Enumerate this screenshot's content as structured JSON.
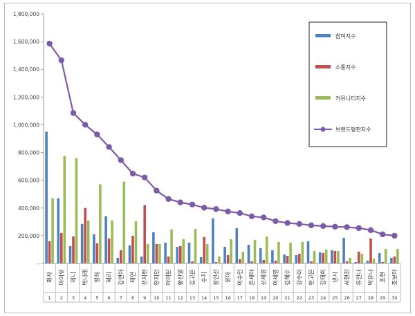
{
  "chart_data": {
    "type": "bar",
    "title": "",
    "xlabel": "",
    "ylabel": "",
    "ylim": [
      0,
      1800000
    ],
    "y_ticks": [
      "-",
      "200,000",
      "400,000",
      "600,000",
      "800,000",
      "1,000,000",
      "1,200,000",
      "1,400,000",
      "1,600,000",
      "1,800,000"
    ],
    "grid": false,
    "legend_position": "right",
    "categories": [
      "화사",
      "아이유",
      "제니",
      "박나래",
      "청하",
      "혜리",
      "김연아",
      "태연",
      "전지현",
      "한지민",
      "아이린",
      "황신영",
      "김고은",
      "수지",
      "정인선",
      "윤아",
      "이수민",
      "윤세아",
      "신세경",
      "이세영",
      "김혜수",
      "강수미",
      "한고은",
      "김태희",
      "낸시",
      "서현진",
      "유인나",
      "박유나",
      "조현",
      "조보아"
    ],
    "ranks": [
      "1",
      "2",
      "3",
      "4",
      "5",
      "6",
      "7",
      "8",
      "9",
      "10",
      "11",
      "12",
      "13",
      "14",
      "15",
      "16",
      "17",
      "18",
      "19",
      "20",
      "21",
      "22",
      "23",
      "24",
      "25",
      "26",
      "27",
      "28",
      "29",
      "30"
    ],
    "series": [
      {
        "name": "참여지수",
        "type": "bar",
        "color": "#4f81bd",
        "values": [
          950000,
          470000,
          125000,
          285000,
          210000,
          340000,
          40000,
          130000,
          50000,
          225000,
          150000,
          120000,
          150000,
          45000,
          325000,
          120000,
          255000,
          135000,
          110000,
          95000,
          65000,
          60000,
          160000,
          80000,
          95000,
          185000,
          10000,
          20000,
          75000,
          40000
        ]
      },
      {
        "name": "소통지수",
        "type": "bar",
        "color": "#c0504d",
        "values": [
          160000,
          220000,
          195000,
          400000,
          145000,
          180000,
          95000,
          200000,
          420000,
          140000,
          50000,
          125000,
          15000,
          190000,
          10000,
          60000,
          30000,
          15000,
          25000,
          20000,
          55000,
          70000,
          15000,
          75000,
          90000,
          15000,
          85000,
          180000,
          10000,
          50000
        ]
      },
      {
        "name": "커뮤니티지수",
        "type": "bar",
        "color": "#9bbb59",
        "values": [
          470000,
          775000,
          760000,
          310000,
          570000,
          310000,
          590000,
          305000,
          140000,
          140000,
          245000,
          175000,
          250000,
          140000,
          50000,
          175000,
          85000,
          170000,
          195000,
          155000,
          150000,
          155000,
          90000,
          100000,
          90000,
          40000,
          70000,
          35000,
          105000,
          105000
        ]
      },
      {
        "name": "브랜드평판지수",
        "type": "line",
        "color": "#7b5ba6",
        "values": [
          1585000,
          1465000,
          1085000,
          1000000,
          930000,
          840000,
          745000,
          648000,
          620000,
          525000,
          465000,
          440000,
          425000,
          402000,
          392000,
          375000,
          363000,
          340000,
          332000,
          305000,
          292000,
          285000,
          275000,
          270000,
          265000,
          262000,
          255000,
          240000,
          210000,
          200000
        ]
      }
    ]
  }
}
